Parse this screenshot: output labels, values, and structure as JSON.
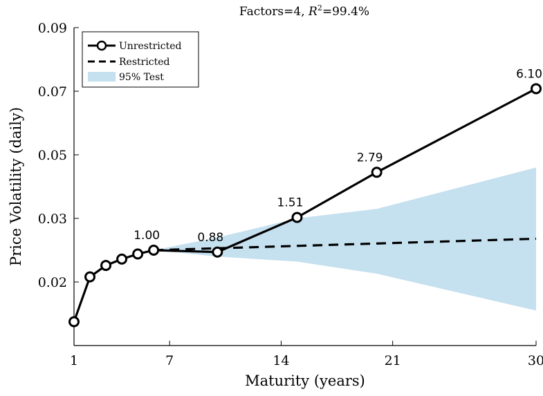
{
  "chart_data": {
    "type": "line",
    "title_prefix": "Factors=4, ",
    "title_r": "R",
    "title_sup": "2",
    "title_suffix": "=99.4%",
    "xlabel": "Maturity (years)",
    "ylabel": "Price Volatility (daily)",
    "xlim": [
      1,
      30
    ],
    "ylim": [
      0.016,
      0.09
    ],
    "x_ticks": [
      1,
      7,
      14,
      21,
      30
    ],
    "y_ticks": [
      {
        "value": 0.02,
        "label": "0.02"
      },
      {
        "value": 0.03,
        "label": "0.03"
      },
      {
        "value": 0.05,
        "label": "0.05"
      },
      {
        "value": 0.07,
        "label": "0.07"
      },
      {
        "value": 0.09,
        "label": "0.09"
      }
    ],
    "legend_position": "top-left",
    "series": [
      {
        "name": "Unrestricted",
        "style": "solid-circles",
        "color": "#000000",
        "points": [
          {
            "x": 1,
            "y": 0.0175
          },
          {
            "x": 2,
            "y": 0.0208
          },
          {
            "x": 3,
            "y": 0.0226
          },
          {
            "x": 4,
            "y": 0.0236
          },
          {
            "x": 5,
            "y": 0.0244
          },
          {
            "x": 6,
            "y": 0.025
          },
          {
            "x": 10,
            "y": 0.0247
          },
          {
            "x": 15,
            "y": 0.0303
          },
          {
            "x": 20,
            "y": 0.0445
          },
          {
            "x": 30,
            "y": 0.0708
          }
        ]
      },
      {
        "name": "Restricted",
        "style": "dashed",
        "color": "#000000",
        "points": [
          {
            "x": 6,
            "y": 0.025
          },
          {
            "x": 30,
            "y": 0.0268
          }
        ]
      }
    ],
    "band": {
      "name": "95% Test",
      "color": "#c5e0ef",
      "upper": [
        {
          "x": 6,
          "y": 0.025
        },
        {
          "x": 10,
          "y": 0.027
        },
        {
          "x": 15,
          "y": 0.03
        },
        {
          "x": 20,
          "y": 0.033
        },
        {
          "x": 30,
          "y": 0.046
        }
      ],
      "lower": [
        {
          "x": 6,
          "y": 0.025
        },
        {
          "x": 10,
          "y": 0.024
        },
        {
          "x": 15,
          "y": 0.0232
        },
        {
          "x": 20,
          "y": 0.0213
        },
        {
          "x": 30,
          "y": 0.0182
        }
      ]
    },
    "annotations": [
      {
        "text": "1.00",
        "x": 6,
        "y": 0.025
      },
      {
        "text": "0.88",
        "x": 10,
        "y": 0.0247
      },
      {
        "text": "1.51",
        "x": 15,
        "y": 0.0303
      },
      {
        "text": "2.79",
        "x": 20,
        "y": 0.0445
      },
      {
        "text": "6.10",
        "x": 30,
        "y": 0.0708
      }
    ]
  }
}
